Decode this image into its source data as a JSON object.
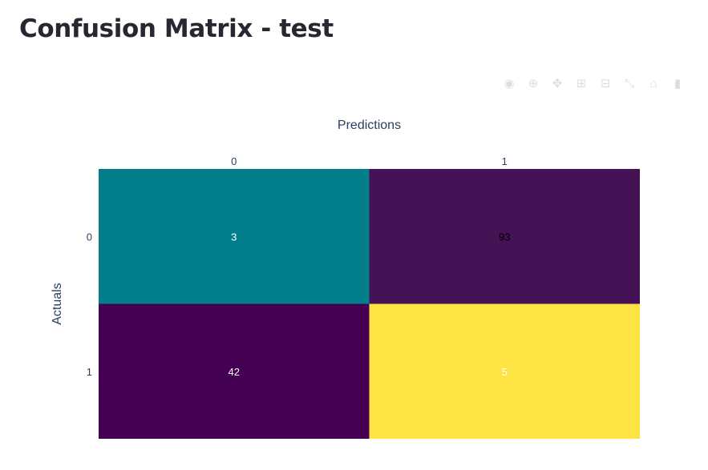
{
  "page": {
    "title": "Confusion Matrix - test"
  },
  "toolbar": {
    "buttons": [
      {
        "name": "camera-icon",
        "glyph": "◉"
      },
      {
        "name": "zoom-icon",
        "glyph": "⊕"
      },
      {
        "name": "pan-icon",
        "glyph": "✥"
      },
      {
        "name": "zoom-in-icon",
        "glyph": "⊞"
      },
      {
        "name": "zoom-out-icon",
        "glyph": "⊟"
      },
      {
        "name": "autoscale-icon",
        "glyph": "⤡"
      },
      {
        "name": "reset-axes-icon",
        "glyph": "⌂"
      },
      {
        "name": "plotly-logo-icon",
        "glyph": "▮"
      }
    ]
  },
  "chart_data": {
    "type": "heatmap",
    "xlabel": "Predictions",
    "ylabel": "Actuals",
    "x_categories": [
      "0",
      "1"
    ],
    "y_categories": [
      "0",
      "1"
    ],
    "z": [
      [
        3,
        93
      ],
      [
        42,
        5
      ]
    ],
    "cell_colors": [
      [
        "#027f8b",
        "#461256"
      ],
      [
        "#440154",
        "#fde343"
      ]
    ],
    "text_colors": [
      [
        "#ffffff",
        "#000000"
      ],
      [
        "#ffffff",
        "#ffffff"
      ]
    ],
    "xaxis_side": "top"
  }
}
